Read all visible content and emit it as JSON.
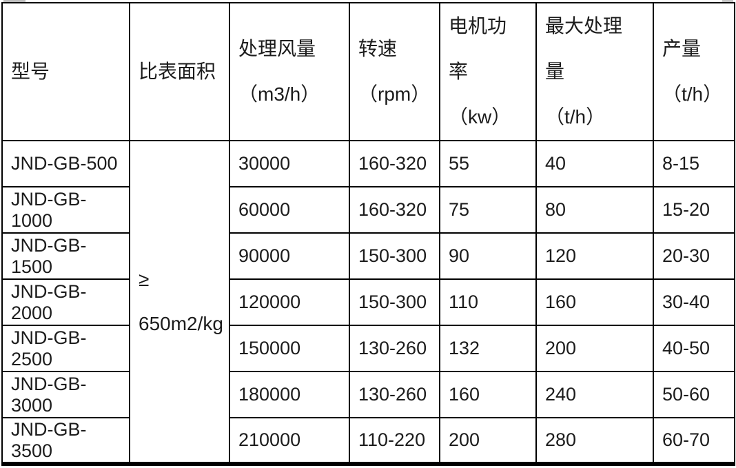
{
  "chart_data": {
    "type": "table",
    "columns": [
      {
        "key": "model",
        "lines": [
          "型号"
        ]
      },
      {
        "key": "surface",
        "lines": [
          "比表面积"
        ]
      },
      {
        "key": "airflow",
        "lines": [
          "处理风量",
          "（m3/h）"
        ]
      },
      {
        "key": "speed",
        "lines": [
          "转速",
          "（rpm）"
        ]
      },
      {
        "key": "power",
        "lines": [
          "电机功",
          "率",
          "（kw）"
        ]
      },
      {
        "key": "capacity",
        "lines": [
          "最大处理",
          "量",
          "（t/h）"
        ]
      },
      {
        "key": "output",
        "lines": [
          "产量",
          "（t/h）"
        ]
      }
    ],
    "merged_cell": {
      "column": "surface",
      "lines": [
        "≥",
        "650m2/kg"
      ]
    },
    "rows": [
      {
        "model": "JND-GB-500",
        "airflow": "30000",
        "speed": "160-320",
        "power": "55",
        "capacity": "40",
        "output": "8-15"
      },
      {
        "model": "JND-GB-1000",
        "airflow": "60000",
        "speed": "160-320",
        "power": "75",
        "capacity": "80",
        "output": "15-20"
      },
      {
        "model": "JND-GB-1500",
        "airflow": "90000",
        "speed": "150-300",
        "power": "90",
        "capacity": "120",
        "output": "20-30"
      },
      {
        "model": "JND-GB-2000",
        "airflow": "120000",
        "speed": "150-300",
        "power": "110",
        "capacity": "160",
        "output": "30-40"
      },
      {
        "model": "JND-GB-2500",
        "airflow": "150000",
        "speed": "130-260",
        "power": "132",
        "capacity": "200",
        "output": "40-50"
      },
      {
        "model": "JND-GB-3000",
        "airflow": "180000",
        "speed": "130-260",
        "power": "160",
        "capacity": "240",
        "output": "50-60"
      },
      {
        "model": "JND-GB-3500",
        "airflow": "210000",
        "speed": "110-220",
        "power": "200",
        "capacity": "280",
        "output": "60-70"
      }
    ],
    "colors": {
      "border": "#000000",
      "text": "#1c1c1c",
      "background": "#ffffff"
    }
  }
}
